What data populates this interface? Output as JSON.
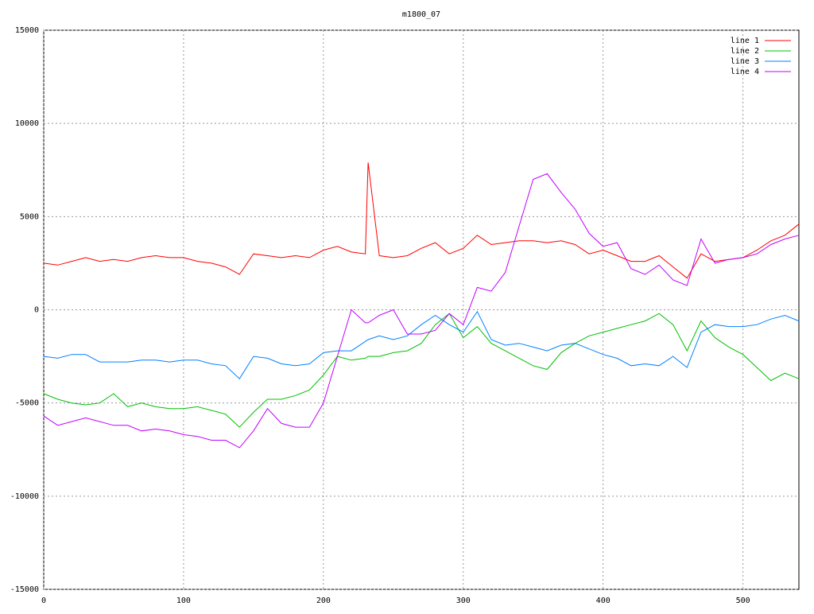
{
  "chart_data": {
    "type": "line",
    "title": "m1800_07",
    "x": [
      0,
      10,
      20,
      30,
      40,
      50,
      60,
      70,
      80,
      90,
      100,
      110,
      120,
      130,
      140,
      150,
      160,
      170,
      180,
      190,
      200,
      210,
      220,
      230,
      232,
      240,
      250,
      260,
      270,
      280,
      290,
      300,
      310,
      320,
      330,
      340,
      350,
      360,
      370,
      380,
      390,
      400,
      410,
      420,
      430,
      440,
      450,
      460,
      470,
      480,
      490,
      500,
      510,
      520,
      530,
      540
    ],
    "series": [
      {
        "name": "line 1",
        "color": "#ff0000",
        "values": [
          2500,
          2400,
          2600,
          2800,
          2600,
          2700,
          2600,
          2800,
          2900,
          2800,
          2800,
          2600,
          2500,
          2300,
          1900,
          3000,
          2900,
          2800,
          2900,
          2800,
          3200,
          3400,
          3100,
          3000,
          7900,
          2900,
          2800,
          2900,
          3300,
          3600,
          3000,
          3300,
          4000,
          3500,
          3600,
          3700,
          3700,
          3600,
          3700,
          3500,
          3000,
          3200,
          2900,
          2600,
          2600,
          2900,
          2300,
          1700,
          3000,
          2600,
          2700,
          2800,
          3200,
          3700,
          4000,
          4600
        ]
      },
      {
        "name": "line 2",
        "color": "#00c000",
        "values": [
          -4500,
          -4800,
          -5000,
          -5100,
          -5000,
          -4500,
          -5200,
          -5000,
          -5200,
          -5300,
          -5300,
          -5200,
          -5400,
          -5600,
          -6300,
          -5500,
          -4800,
          -4800,
          -4600,
          -4300,
          -3500,
          -2500,
          -2700,
          -2600,
          -2500,
          -2500,
          -2300,
          -2200,
          -1800,
          -800,
          -200,
          -1500,
          -900,
          -1800,
          -2200,
          -2600,
          -3000,
          -3200,
          -2300,
          -1800,
          -1400,
          -1200,
          -1000,
          -800,
          -600,
          -200,
          -800,
          -2200,
          -600,
          -1500,
          -2000,
          -2400,
          -3100,
          -3800,
          -3400,
          -3700
        ]
      },
      {
        "name": "line 3",
        "color": "#0080ff",
        "values": [
          -2500,
          -2600,
          -2400,
          -2400,
          -2800,
          -2800,
          -2800,
          -2700,
          -2700,
          -2800,
          -2700,
          -2700,
          -2900,
          -3000,
          -3700,
          -2500,
          -2600,
          -2900,
          -3000,
          -2900,
          -2300,
          -2200,
          -2200,
          -1700,
          -1600,
          -1400,
          -1600,
          -1400,
          -800,
          -300,
          -800,
          -1200,
          -100,
          -1600,
          -1900,
          -1800,
          -2000,
          -2200,
          -1900,
          -1800,
          -2100,
          -2400,
          -2600,
          -3000,
          -2900,
          -3000,
          -2500,
          -3100,
          -1200,
          -800,
          -900,
          -900,
          -800,
          -500,
          -300,
          -600
        ]
      },
      {
        "name": "line 4",
        "color": "#c000ff",
        "values": [
          -5700,
          -6200,
          -6000,
          -5800,
          -6000,
          -6200,
          -6200,
          -6500,
          -6400,
          -6500,
          -6700,
          -6800,
          -7000,
          -7000,
          -7400,
          -6500,
          -5300,
          -6100,
          -6300,
          -6300,
          -5000,
          -2500,
          0,
          -700,
          -700,
          -300,
          0,
          -1300,
          -1300,
          -1100,
          -200,
          -800,
          1200,
          1000,
          2000,
          4500,
          7000,
          7300,
          6300,
          5400,
          4100,
          3400,
          3600,
          2200,
          1900,
          2400,
          1600,
          1300,
          3800,
          2500,
          2700,
          2800,
          3000,
          3500,
          3800,
          4000
        ]
      }
    ],
    "xlim": [
      0,
      540
    ],
    "xticks": [
      0,
      100,
      200,
      300,
      400,
      500
    ],
    "ylim": [
      -15000,
      15000
    ],
    "yticks": [
      -15000,
      -10000,
      -5000,
      0,
      5000,
      10000,
      15000
    ],
    "grid": true,
    "legend": "top-right"
  }
}
